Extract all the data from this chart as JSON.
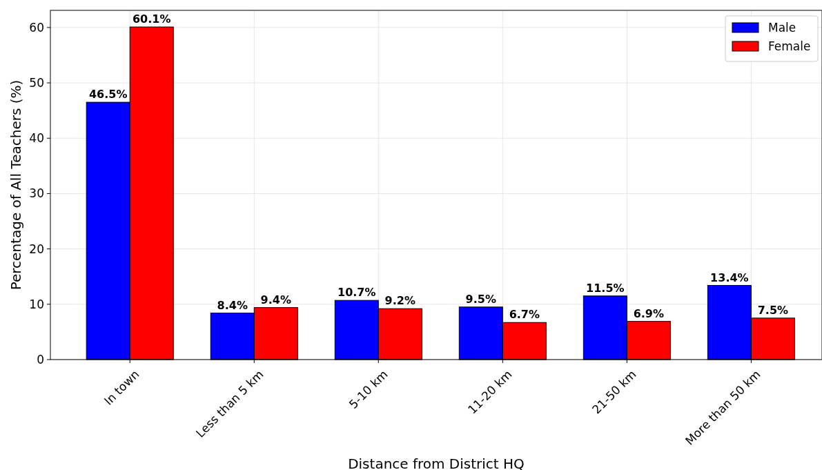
{
  "chart_data": {
    "type": "bar",
    "xlabel": "Distance from District HQ",
    "ylabel": "Percentage of All Teachers (%)",
    "categories": [
      "In town",
      "Less than 5 km",
      "5-10 km",
      "11-20 km",
      "21-50 km",
      "More than 50 km"
    ],
    "series": [
      {
        "name": "Male",
        "color": "#0000ff",
        "values": [
          46.5,
          8.4,
          10.7,
          9.5,
          11.5,
          13.4
        ],
        "value_labels": [
          "46.5%",
          "8.4%",
          "10.7%",
          "9.5%",
          "11.5%",
          "13.4%"
        ]
      },
      {
        "name": "Female",
        "color": "#ff0000",
        "values": [
          60.1,
          9.4,
          9.2,
          6.7,
          6.9,
          7.5
        ],
        "value_labels": [
          "60.1%",
          "9.4%",
          "9.2%",
          "6.7%",
          "6.9%",
          "7.5%"
        ]
      }
    ],
    "ylim": [
      0,
      63.1
    ],
    "yticks": [
      0,
      10,
      20,
      30,
      40,
      50,
      60
    ],
    "grid": true,
    "legend": "top right"
  }
}
